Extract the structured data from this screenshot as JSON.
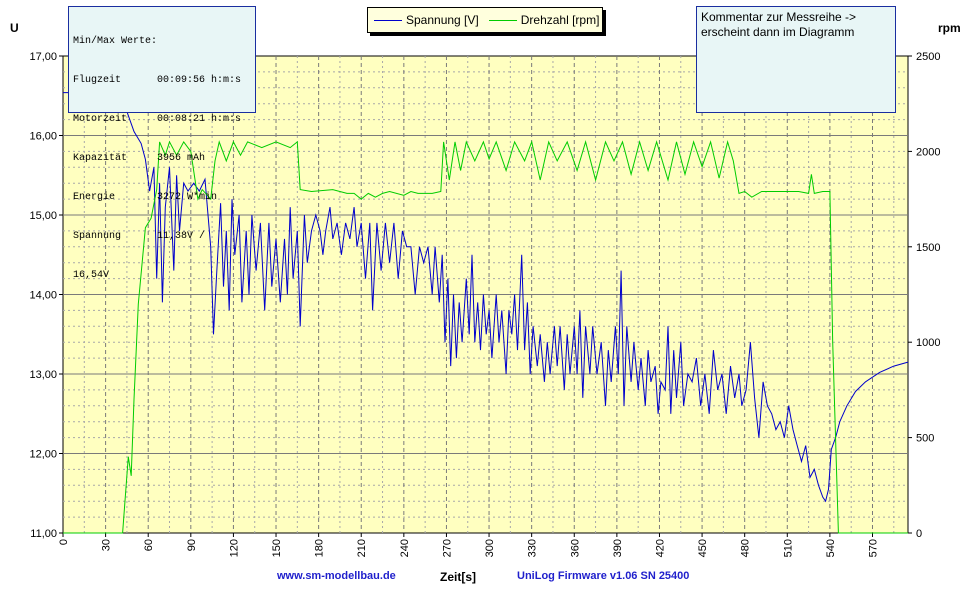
{
  "chart_data": {
    "type": "line",
    "title": "",
    "left_axis": {
      "label": "U",
      "min": 11,
      "max": 17,
      "ticks": [
        "11,00",
        "12,00",
        "13,00",
        "14,00",
        "15,00",
        "16,00",
        "17,00"
      ]
    },
    "right_axis": {
      "label": "rpm",
      "min": 0,
      "max": 2500,
      "ticks": [
        "0",
        "500",
        "1000",
        "1500",
        "2000",
        "2500"
      ]
    },
    "x_axis": {
      "label": "Zeit[s]",
      "min": 0,
      "max": 595,
      "ticks": [
        "0",
        "30",
        "60",
        "90",
        "120",
        "150",
        "180",
        "210",
        "240",
        "270",
        "300",
        "330",
        "360",
        "390",
        "420",
        "450",
        "480",
        "510",
        "540",
        "570"
      ]
    },
    "grid": true,
    "legend": {
      "placement": "top-center",
      "entries": [
        "Spannung [V]",
        "Drehzahl [rpm]"
      ]
    },
    "series": [
      {
        "name": "Spannung [V]",
        "axis": "left",
        "color": "#0000cc",
        "points": [
          [
            0,
            16.54
          ],
          [
            40,
            16.54
          ],
          [
            45,
            16.3
          ],
          [
            50,
            16.05
          ],
          [
            55,
            15.9
          ],
          [
            58,
            15.7
          ],
          [
            61,
            15.3
          ],
          [
            64,
            15.6
          ],
          [
            66,
            14.2
          ],
          [
            68,
            15.4
          ],
          [
            70,
            13.9
          ],
          [
            72,
            15.1
          ],
          [
            75,
            15.6
          ],
          [
            78,
            14.3
          ],
          [
            80,
            15.5
          ],
          [
            82,
            14.8
          ],
          [
            85,
            15.4
          ],
          [
            88,
            15.3
          ],
          [
            92,
            15.4
          ],
          [
            96,
            15.3
          ],
          [
            100,
            15.45
          ],
          [
            104,
            14.6
          ],
          [
            106,
            13.5
          ],
          [
            108,
            14.2
          ],
          [
            111,
            15.15
          ],
          [
            113,
            14.1
          ],
          [
            115,
            14.8
          ],
          [
            117,
            13.8
          ],
          [
            119,
            15.2
          ],
          [
            121,
            14.5
          ],
          [
            124,
            15.0
          ],
          [
            126,
            13.9
          ],
          [
            129,
            14.8
          ],
          [
            131,
            14.0
          ],
          [
            133,
            15.0
          ],
          [
            136,
            14.3
          ],
          [
            139,
            14.9
          ],
          [
            142,
            13.8
          ],
          [
            145,
            14.9
          ],
          [
            147,
            14.1
          ],
          [
            150,
            14.7
          ],
          [
            153,
            13.9
          ],
          [
            156,
            14.7
          ],
          [
            158,
            14.0
          ],
          [
            160,
            15.1
          ],
          [
            162,
            14.2
          ],
          [
            165,
            14.8
          ],
          [
            167,
            13.6
          ],
          [
            170,
            15.0
          ],
          [
            172,
            14.4
          ],
          [
            175,
            14.8
          ],
          [
            178,
            15.0
          ],
          [
            181,
            14.8
          ],
          [
            183,
            14.5
          ],
          [
            185,
            14.8
          ],
          [
            188,
            15.1
          ],
          [
            190,
            14.7
          ],
          [
            193,
            14.9
          ],
          [
            196,
            14.5
          ],
          [
            199,
            14.9
          ],
          [
            202,
            14.7
          ],
          [
            205,
            15.1
          ],
          [
            207,
            14.6
          ],
          [
            210,
            14.9
          ],
          [
            213,
            14.2
          ],
          [
            216,
            14.9
          ],
          [
            218,
            13.8
          ],
          [
            221,
            14.9
          ],
          [
            224,
            14.3
          ],
          [
            227,
            14.9
          ],
          [
            230,
            14.4
          ],
          [
            233,
            14.9
          ],
          [
            236,
            14.2
          ],
          [
            239,
            14.8
          ],
          [
            242,
            14.6
          ],
          [
            245,
            14.6
          ],
          [
            248,
            14.0
          ],
          [
            251,
            14.6
          ],
          [
            254,
            14.4
          ],
          [
            257,
            14.6
          ],
          [
            260,
            14.0
          ],
          [
            262,
            14.6
          ],
          [
            265,
            13.9
          ],
          [
            267,
            14.5
          ],
          [
            269,
            13.4
          ],
          [
            271,
            14.2
          ],
          [
            273,
            13.1
          ],
          [
            275,
            14.0
          ],
          [
            277,
            13.2
          ],
          [
            279,
            13.9
          ],
          [
            281,
            13.4
          ],
          [
            284,
            14.2
          ],
          [
            286,
            13.5
          ],
          [
            288,
            14.5
          ],
          [
            290,
            13.4
          ],
          [
            292,
            13.9
          ],
          [
            294,
            13.3
          ],
          [
            296,
            14.0
          ],
          [
            298,
            13.5
          ],
          [
            300,
            13.8
          ],
          [
            302,
            13.2
          ],
          [
            305,
            14.0
          ],
          [
            307,
            13.4
          ],
          [
            309,
            13.8
          ],
          [
            312,
            13.0
          ],
          [
            314,
            13.8
          ],
          [
            316,
            13.5
          ],
          [
            318,
            14.0
          ],
          [
            320,
            13.3
          ],
          [
            323,
            14.5
          ],
          [
            325,
            13.3
          ],
          [
            327,
            13.9
          ],
          [
            329,
            13.0
          ],
          [
            331,
            13.6
          ],
          [
            334,
            13.1
          ],
          [
            336,
            13.5
          ],
          [
            339,
            12.9
          ],
          [
            341,
            13.4
          ],
          [
            343,
            13.0
          ],
          [
            346,
            13.6
          ],
          [
            348,
            13.1
          ],
          [
            350,
            13.6
          ],
          [
            353,
            12.8
          ],
          [
            355,
            13.5
          ],
          [
            357,
            13.0
          ],
          [
            360,
            13.6
          ],
          [
            362,
            13.0
          ],
          [
            364,
            13.8
          ],
          [
            366,
            12.7
          ],
          [
            368,
            13.6
          ],
          [
            371,
            13.0
          ],
          [
            373,
            13.6
          ],
          [
            376,
            13.0
          ],
          [
            379,
            13.4
          ],
          [
            382,
            12.6
          ],
          [
            384,
            13.3
          ],
          [
            386,
            12.9
          ],
          [
            389,
            13.6
          ],
          [
            391,
            13.0
          ],
          [
            393,
            14.3
          ],
          [
            395,
            12.6
          ],
          [
            397,
            13.6
          ],
          [
            400,
            12.9
          ],
          [
            402,
            13.4
          ],
          [
            405,
            12.8
          ],
          [
            407,
            13.2
          ],
          [
            410,
            12.6
          ],
          [
            412,
            13.3
          ],
          [
            414,
            12.9
          ],
          [
            417,
            13.1
          ],
          [
            419,
            12.5
          ],
          [
            421,
            12.9
          ],
          [
            424,
            12.8
          ],
          [
            426,
            13.6
          ],
          [
            428,
            12.5
          ],
          [
            430,
            13.3
          ],
          [
            432,
            12.7
          ],
          [
            435,
            13.4
          ],
          [
            437,
            12.6
          ],
          [
            440,
            13.0
          ],
          [
            443,
            12.9
          ],
          [
            446,
            13.2
          ],
          [
            449,
            12.6
          ],
          [
            452,
            13.0
          ],
          [
            455,
            12.5
          ],
          [
            458,
            13.3
          ],
          [
            461,
            12.8
          ],
          [
            464,
            13.0
          ],
          [
            467,
            12.5
          ],
          [
            470,
            13.1
          ],
          [
            473,
            12.7
          ],
          [
            476,
            13.0
          ],
          [
            478,
            12.6
          ],
          [
            481,
            12.8
          ],
          [
            484,
            13.4
          ],
          [
            487,
            12.7
          ],
          [
            490,
            12.2
          ],
          [
            493,
            12.9
          ],
          [
            496,
            12.6
          ],
          [
            499,
            12.5
          ],
          [
            502,
            12.3
          ],
          [
            505,
            12.4
          ],
          [
            508,
            12.2
          ],
          [
            511,
            12.6
          ],
          [
            514,
            12.3
          ],
          [
            517,
            12.1
          ],
          [
            520,
            11.9
          ],
          [
            523,
            12.1
          ],
          [
            526,
            11.7
          ],
          [
            529,
            11.8
          ],
          [
            532,
            11.6
          ],
          [
            535,
            11.45
          ],
          [
            537,
            11.4
          ],
          [
            539,
            11.55
          ],
          [
            541,
            12.05
          ],
          [
            544,
            12.2
          ],
          [
            547,
            12.4
          ],
          [
            552,
            12.6
          ],
          [
            558,
            12.78
          ],
          [
            565,
            12.9
          ],
          [
            575,
            13.02
          ],
          [
            585,
            13.1
          ],
          [
            595,
            13.15
          ]
        ]
      },
      {
        "name": "Drehzahl [rpm]",
        "axis": "right",
        "color": "#00cc00",
        "points": [
          [
            0,
            0
          ],
          [
            42,
            0
          ],
          [
            46,
            400
          ],
          [
            48,
            300
          ],
          [
            50,
            700
          ],
          [
            53,
            1200
          ],
          [
            58,
            1600
          ],
          [
            62,
            1650
          ],
          [
            66,
            1800
          ],
          [
            68,
            2050
          ],
          [
            72,
            1980
          ],
          [
            75,
            2050
          ],
          [
            80,
            1980
          ],
          [
            85,
            2050
          ],
          [
            90,
            2000
          ],
          [
            95,
            1750
          ],
          [
            98,
            1800
          ],
          [
            104,
            1750
          ],
          [
            107,
            1950
          ],
          [
            110,
            2050
          ],
          [
            115,
            1950
          ],
          [
            120,
            2050
          ],
          [
            125,
            1980
          ],
          [
            130,
            2050
          ],
          [
            140,
            2020
          ],
          [
            150,
            2050
          ],
          [
            160,
            2020
          ],
          [
            165,
            2050
          ],
          [
            167,
            1800
          ],
          [
            175,
            1790
          ],
          [
            190,
            1800
          ],
          [
            200,
            1780
          ],
          [
            205,
            1780
          ],
          [
            210,
            1750
          ],
          [
            215,
            1780
          ],
          [
            220,
            1760
          ],
          [
            225,
            1780
          ],
          [
            230,
            1790
          ],
          [
            240,
            1770
          ],
          [
            245,
            1790
          ],
          [
            250,
            1780
          ],
          [
            260,
            1780
          ],
          [
            266,
            1790
          ],
          [
            268,
            2050
          ],
          [
            272,
            1850
          ],
          [
            276,
            2050
          ],
          [
            280,
            1900
          ],
          [
            284,
            2050
          ],
          [
            290,
            1950
          ],
          [
            296,
            2050
          ],
          [
            300,
            1960
          ],
          [
            305,
            2050
          ],
          [
            312,
            1900
          ],
          [
            318,
            2050
          ],
          [
            325,
            1950
          ],
          [
            330,
            2050
          ],
          [
            336,
            1850
          ],
          [
            342,
            2050
          ],
          [
            348,
            1950
          ],
          [
            355,
            2050
          ],
          [
            362,
            1900
          ],
          [
            368,
            2050
          ],
          [
            375,
            1850
          ],
          [
            382,
            2050
          ],
          [
            388,
            1950
          ],
          [
            394,
            2050
          ],
          [
            400,
            1880
          ],
          [
            406,
            2050
          ],
          [
            412,
            1900
          ],
          [
            418,
            2050
          ],
          [
            426,
            1850
          ],
          [
            432,
            2050
          ],
          [
            438,
            1880
          ],
          [
            444,
            2050
          ],
          [
            450,
            1920
          ],
          [
            456,
            2050
          ],
          [
            462,
            1860
          ],
          [
            468,
            2050
          ],
          [
            472,
            1950
          ],
          [
            476,
            1780
          ],
          [
            480,
            1790
          ],
          [
            485,
            1760
          ],
          [
            492,
            1790
          ],
          [
            500,
            1790
          ],
          [
            510,
            1790
          ],
          [
            518,
            1790
          ],
          [
            525,
            1780
          ],
          [
            527,
            1880
          ],
          [
            529,
            1780
          ],
          [
            535,
            1790
          ],
          [
            540,
            1790
          ],
          [
            542,
            1000
          ],
          [
            546,
            0
          ],
          [
            595,
            0
          ]
        ]
      }
    ]
  },
  "minmax_box": {
    "header": "Min/Max Werte:",
    "rows": [
      {
        "key": "Flugzeit",
        "value": "00:09:56 h:m:s"
      },
      {
        "key": "Motorzeit",
        "value": "00:08:21 h:m:s"
      },
      {
        "key": "Kapazität",
        "value": "3956 mAh"
      },
      {
        "key": "Energie",
        "value": "3272 W*min"
      },
      {
        "key": "Spannung",
        "value": "11,38V /"
      }
    ],
    "extra": "16,54V"
  },
  "comment_box": {
    "line1": "Kommentar zur Messreihe ->",
    "line2": "erscheint dann im Diagramm"
  },
  "footer": {
    "website": "www.sm-modellbau.de",
    "firmware": "UniLog Firmware v1.06 SN 25400"
  },
  "colors": {
    "plot_bg": "#ffffc0",
    "grid_major": "#808080",
    "grid_minor": "#b0b0b0",
    "box_bg": "#e8f6f6",
    "box_border": "#1a2ea0"
  }
}
